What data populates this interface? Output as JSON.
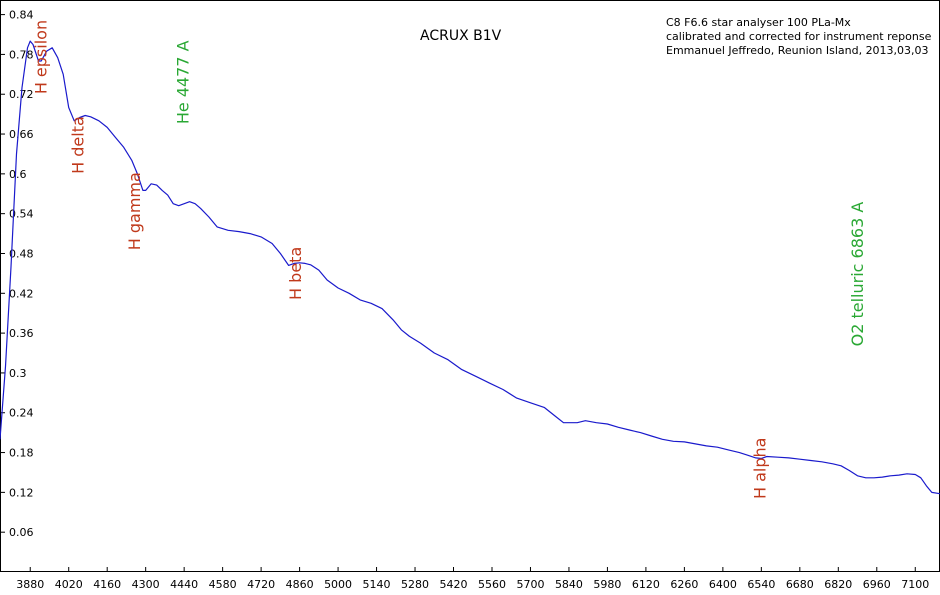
{
  "chart_data": {
    "type": "line",
    "title": "ACRUX B1V",
    "info_lines": [
      "C8 F6.6 star analyser 100 PLa-Mx",
      "calibrated and corrected for instrument reponse",
      "Emmanuel Jeffredo, Reunion Island, 2013,03,03"
    ],
    "xlabel": "",
    "ylabel": "",
    "xlim": [
      3770,
      7190
    ],
    "ylim": [
      0.0,
      0.862
    ],
    "x_ticks": [
      3880,
      4020,
      4160,
      4300,
      4440,
      4580,
      4720,
      4860,
      5000,
      5140,
      5280,
      5420,
      5560,
      5700,
      5840,
      5980,
      6120,
      6260,
      6400,
      6540,
      6680,
      6820,
      6960,
      7100
    ],
    "y_ticks": [
      0.06,
      0.12,
      0.18,
      0.24,
      0.3,
      0.36,
      0.42,
      0.48,
      0.54,
      0.6,
      0.66,
      0.72,
      0.78,
      0.84
    ],
    "line_color": "#1a1acc",
    "series": [
      {
        "name": "",
        "x": [
          3770,
          3790,
          3810,
          3830,
          3850,
          3870,
          3880,
          3890,
          3910,
          3920,
          3940,
          3960,
          3980,
          4000,
          4020,
          4040,
          4060,
          4080,
          4100,
          4130,
          4160,
          4190,
          4220,
          4250,
          4270,
          4290,
          4300,
          4320,
          4340,
          4360,
          4380,
          4400,
          4420,
          4440,
          4460,
          4480,
          4500,
          4530,
          4560,
          4600,
          4640,
          4680,
          4720,
          4760,
          4790,
          4820,
          4840,
          4860,
          4880,
          4900,
          4930,
          4960,
          5000,
          5040,
          5080,
          5120,
          5160,
          5200,
          5230,
          5260,
          5300,
          5350,
          5400,
          5450,
          5500,
          5550,
          5600,
          5650,
          5700,
          5750,
          5790,
          5820,
          5840,
          5870,
          5900,
          5940,
          5980,
          6020,
          6060,
          6100,
          6140,
          6180,
          6220,
          6260,
          6300,
          6340,
          6380,
          6420,
          6460,
          6490,
          6520,
          6540,
          6560,
          6600,
          6640,
          6680,
          6720,
          6760,
          6800,
          6830,
          6860,
          6890,
          6920,
          6950,
          6980,
          7010,
          7040,
          7070,
          7100,
          7120,
          7140,
          7160,
          7190
        ],
        "y": [
          0.2,
          0.31,
          0.46,
          0.63,
          0.73,
          0.79,
          0.8,
          0.795,
          0.77,
          0.77,
          0.785,
          0.79,
          0.775,
          0.75,
          0.7,
          0.68,
          0.685,
          0.688,
          0.686,
          0.68,
          0.67,
          0.655,
          0.64,
          0.62,
          0.6,
          0.575,
          0.575,
          0.585,
          0.583,
          0.575,
          0.568,
          0.555,
          0.552,
          0.555,
          0.558,
          0.555,
          0.548,
          0.535,
          0.52,
          0.515,
          0.513,
          0.51,
          0.505,
          0.495,
          0.48,
          0.462,
          0.465,
          0.466,
          0.465,
          0.463,
          0.455,
          0.44,
          0.428,
          0.42,
          0.41,
          0.405,
          0.397,
          0.38,
          0.365,
          0.355,
          0.345,
          0.33,
          0.32,
          0.305,
          0.295,
          0.285,
          0.275,
          0.262,
          0.255,
          0.248,
          0.235,
          0.225,
          0.225,
          0.225,
          0.228,
          0.225,
          0.223,
          0.218,
          0.214,
          0.21,
          0.205,
          0.2,
          0.197,
          0.196,
          0.193,
          0.19,
          0.188,
          0.184,
          0.18,
          0.176,
          0.172,
          0.171,
          0.174,
          0.173,
          0.172,
          0.17,
          0.168,
          0.166,
          0.163,
          0.16,
          0.153,
          0.145,
          0.142,
          0.142,
          0.143,
          0.145,
          0.146,
          0.148,
          0.147,
          0.142,
          0.13,
          0.12,
          0.118
        ]
      }
    ],
    "annotations": [
      {
        "text": "H epsilon",
        "x": 3940,
        "y": 0.72,
        "color": "#c0391b"
      },
      {
        "text": "H delta",
        "x": 4075,
        "y": 0.6,
        "color": "#c0391b"
      },
      {
        "text": "H gamma",
        "x": 4280,
        "y": 0.485,
        "color": "#c0391b"
      },
      {
        "text": "He 4477 A",
        "x": 4455,
        "y": 0.675,
        "color": "#2aa834"
      },
      {
        "text": "H beta",
        "x": 4865,
        "y": 0.41,
        "color": "#c0391b"
      },
      {
        "text": "H alpha",
        "x": 6555,
        "y": 0.11,
        "color": "#c0391b"
      },
      {
        "text": "O2 telluric 6863 A",
        "x": 6910,
        "y": 0.34,
        "color": "#2aa834"
      }
    ],
    "grid": false,
    "legend": "none"
  }
}
